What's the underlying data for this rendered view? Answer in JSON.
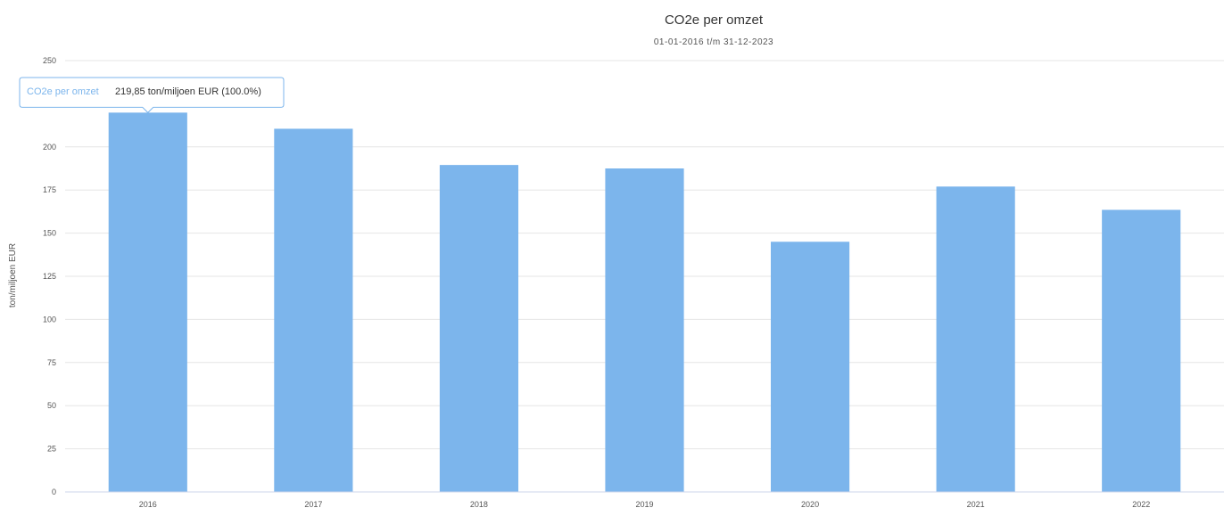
{
  "chart_data": {
    "type": "bar",
    "title": "CO2e per omzet",
    "subtitle": "01-01-2016 t/m 31-12-2023",
    "xlabel": "",
    "ylabel": "ton/miljoen EUR",
    "ylim": [
      0,
      250
    ],
    "yticks": [
      0,
      25,
      50,
      75,
      100,
      125,
      150,
      175,
      200,
      250
    ],
    "grid": true,
    "bar_color": "#7cb5ec",
    "categories": [
      "2016",
      "2017",
      "2018",
      "2019",
      "2020",
      "2021",
      "2022"
    ],
    "series": [
      {
        "name": "CO2e per omzet",
        "values": [
          219.85,
          210.5,
          189.5,
          187.5,
          145,
          177,
          163.5
        ]
      }
    ],
    "tooltip": {
      "series_label": "CO2e per omzet",
      "value_text": "219,85 ton/miljoen EUR (100.0%)",
      "category_index": 0,
      "border_color": "#7cb5ec"
    }
  }
}
